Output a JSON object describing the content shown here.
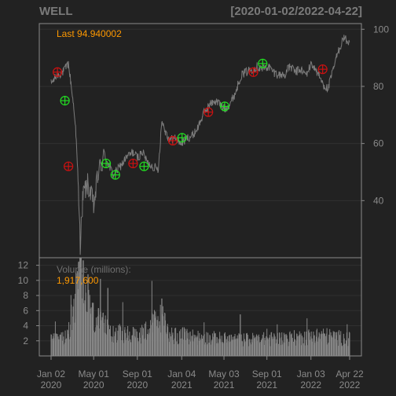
{
  "chart_data": [
    {
      "type": "line",
      "title": "WELL",
      "date_range": "[2020-01-02/2022-04-22]",
      "last_label": "Last 94.940002",
      "ylim": [
        20,
        102
      ],
      "yticks": [
        40,
        60,
        80,
        100
      ],
      "grid": true,
      "series": [
        {
          "x": [
            "2020-01-02",
            "2020-01-20",
            "2020-02-05",
            "2020-02-20",
            "2020-03-01",
            "2020-03-10",
            "2020-03-16",
            "2020-03-20",
            "2020-03-24",
            "2020-04-01",
            "2020-04-15",
            "2020-05-01",
            "2020-05-15",
            "2020-06-01",
            "2020-06-10",
            "2020-06-25",
            "2020-07-15",
            "2020-08-01",
            "2020-08-20",
            "2020-09-01",
            "2020-09-15",
            "2020-10-01",
            "2020-10-15",
            "2020-10-30",
            "2020-11-09",
            "2020-11-20",
            "2020-12-01",
            "2020-12-15",
            "2021-01-04",
            "2021-01-20",
            "2021-02-05",
            "2021-02-20",
            "2021-03-05",
            "2021-03-20",
            "2021-04-05",
            "2021-04-20",
            "2021-05-05",
            "2021-05-20",
            "2021-06-05",
            "2021-06-20",
            "2021-07-05",
            "2021-07-20",
            "2021-08-05",
            "2021-08-20",
            "2021-09-05",
            "2021-09-20",
            "2021-10-05",
            "2021-10-20",
            "2021-11-05",
            "2021-11-20",
            "2021-12-05",
            "2021-12-20",
            "2022-01-05",
            "2022-01-20",
            "2022-02-05",
            "2022-02-20",
            "2022-03-05",
            "2022-03-20",
            "2022-04-05",
            "2022-04-22"
          ],
          "values": [
            81,
            84,
            85,
            88,
            78,
            68,
            52,
            40,
            25,
            42,
            46,
            38,
            50,
            56,
            53,
            49,
            52,
            55,
            57,
            55,
            57,
            53,
            52,
            51,
            68,
            64,
            61,
            62,
            60,
            62,
            63,
            66,
            70,
            73,
            75,
            74,
            72,
            74,
            78,
            84,
            85,
            86,
            87,
            86,
            87,
            85,
            84,
            84,
            87,
            85,
            86,
            84,
            88,
            85,
            81,
            79,
            85,
            92,
            97,
            95
          ]
        }
      ],
      "markers": [
        {
          "date": "2020-01-20",
          "value": 85,
          "kind": "sell"
        },
        {
          "date": "2020-02-10",
          "value": 75,
          "kind": "buy"
        },
        {
          "date": "2020-02-20",
          "value": 52,
          "kind": "sell"
        },
        {
          "date": "2020-06-05",
          "value": 53,
          "kind": "buy"
        },
        {
          "date": "2020-07-01",
          "value": 49,
          "kind": "buy"
        },
        {
          "date": "2020-08-20",
          "value": 53,
          "kind": "sell"
        },
        {
          "date": "2020-09-20",
          "value": 52,
          "kind": "buy"
        },
        {
          "date": "2020-12-10",
          "value": 61,
          "kind": "sell"
        },
        {
          "date": "2021-01-05",
          "value": 62,
          "kind": "buy"
        },
        {
          "date": "2021-03-20",
          "value": 71,
          "kind": "sell"
        },
        {
          "date": "2021-05-05",
          "value": 73,
          "kind": "buy"
        },
        {
          "date": "2021-07-25",
          "value": 85,
          "kind": "sell"
        },
        {
          "date": "2021-08-20",
          "value": 88,
          "kind": "buy"
        },
        {
          "date": "2022-02-05",
          "value": 86,
          "kind": "sell"
        }
      ]
    },
    {
      "type": "bar",
      "title": "Volume (millions):",
      "last_value_label": "1,917,600",
      "ylim": [
        0,
        13
      ],
      "yticks": [
        2,
        4,
        6,
        8,
        10,
        12
      ],
      "x_tick_labels": [
        {
          "date": "2020-01-02",
          "line1": "Jan 02",
          "line2": "2020"
        },
        {
          "date": "2020-05-01",
          "line1": "May 01",
          "line2": "2020"
        },
        {
          "date": "2020-09-01",
          "line1": "Sep 01",
          "line2": "2020"
        },
        {
          "date": "2021-01-04",
          "line1": "Jan 04",
          "line2": "2021"
        },
        {
          "date": "2021-05-03",
          "line1": "May 03",
          "line2": "2021"
        },
        {
          "date": "2021-09-01",
          "line1": "Sep 01",
          "line2": "2021"
        },
        {
          "date": "2022-01-03",
          "line1": "Jan 03",
          "line2": "2022"
        },
        {
          "date": "2022-04-22",
          "line1": "Apr 22",
          "line2": "2022"
        }
      ],
      "volume_profile": {
        "x": [
          "2020-01-02",
          "2020-02-15",
          "2020-03-01",
          "2020-03-15",
          "2020-03-25",
          "2020-04-10",
          "2020-05-01",
          "2020-06-01",
          "2020-07-01",
          "2020-09-01",
          "2020-11-09",
          "2020-12-01",
          "2021-03-01",
          "2021-06-01",
          "2021-09-01",
          "2021-12-01",
          "2022-02-01",
          "2022-04-22"
        ],
        "values": [
          2.0,
          2.4,
          5.0,
          8.5,
          10.5,
          7.0,
          5.0,
          3.8,
          3.0,
          2.6,
          5.0,
          2.8,
          2.4,
          2.1,
          2.2,
          2.4,
          2.7,
          2.2
        ]
      },
      "volume_spikes": [
        {
          "date": "2020-03-20",
          "value": 12.5
        },
        {
          "date": "2020-04-15",
          "value": 10.8
        },
        {
          "date": "2020-05-20",
          "value": 10.2
        },
        {
          "date": "2020-06-10",
          "value": 9.0
        },
        {
          "date": "2020-11-09",
          "value": 7.6
        },
        {
          "date": "2021-06-18",
          "value": 5.5
        }
      ],
      "colors": {
        "price_line": "#7b7b7b",
        "volume_bars": "#868686",
        "buy": "#22dd22",
        "sell": "#cc1111",
        "accent": "#ff9900",
        "grid": "#303030",
        "frame": "#8a8a8a",
        "background": "#222222"
      }
    }
  ]
}
